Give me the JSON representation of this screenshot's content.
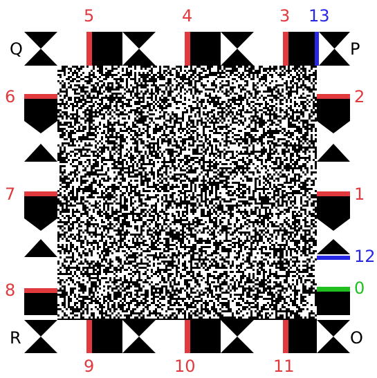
{
  "colors": {
    "background": "#ffffff",
    "ink": "#000000",
    "red": "#e0393e",
    "blue": "#2727e6",
    "green": "#1fbf1f"
  },
  "corner_labels": {
    "top_left": "Q",
    "top_right": "P",
    "bottom_left": "R",
    "bottom_right": "O"
  },
  "edge_labels": {
    "top": [
      "5",
      "4",
      "3"
    ],
    "top_extra": "13",
    "right": [
      "2",
      "1"
    ],
    "right_extra": "12",
    "right_bottom": "0",
    "left": [
      "6",
      "7",
      "8"
    ],
    "bottom": [
      "9",
      "10",
      "11"
    ]
  },
  "noise": {
    "seed": 12345,
    "density_white": 0.5
  }
}
